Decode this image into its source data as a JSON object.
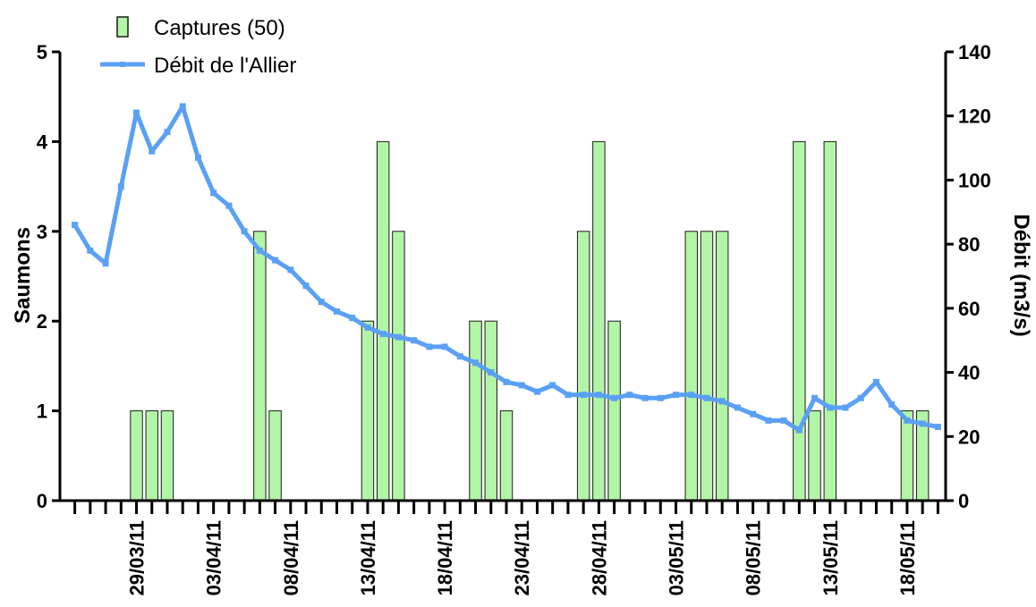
{
  "chart_data": {
    "type": "bar",
    "colors": {
      "bar_fill": "#b3f5a6",
      "bar_stroke": "#1a1a1a",
      "line": "#5aa0f5",
      "axis": "#000000"
    },
    "legend": {
      "placement": "top-left",
      "entries": [
        {
          "label": "Captures (50)",
          "kind": "bar"
        },
        {
          "label": "Débit de l'Allier",
          "kind": "line"
        }
      ]
    },
    "ylabel_left": "Saumons",
    "ylabel_right": "Débit (m3/s)",
    "ylim_left": [
      0,
      5
    ],
    "ylim_right": [
      0,
      140
    ],
    "yticks_left": [
      "0",
      "1",
      "2",
      "3",
      "4",
      "5"
    ],
    "yticks_right": [
      "0",
      "20",
      "40",
      "60",
      "80",
      "100",
      "120",
      "140"
    ],
    "x_tick_labels": [
      {
        "index": 4,
        "label": "29/03/11"
      },
      {
        "index": 9,
        "label": "03/04/11"
      },
      {
        "index": 14,
        "label": "08/04/11"
      },
      {
        "index": 19,
        "label": "13/04/11"
      },
      {
        "index": 24,
        "label": "18/04/11"
      },
      {
        "index": 29,
        "label": "23/04/11"
      },
      {
        "index": 34,
        "label": "28/04/11"
      },
      {
        "index": 39,
        "label": "03/05/11"
      },
      {
        "index": 44,
        "label": "08/05/11"
      },
      {
        "index": 49,
        "label": "13/05/11"
      },
      {
        "index": 54,
        "label": "18/05/11"
      }
    ],
    "day_count": 57,
    "series": [
      {
        "name": "Captures (50)",
        "kind": "bar",
        "values": [
          0,
          0,
          0,
          0,
          1,
          1,
          1,
          0,
          0,
          0,
          0,
          0,
          3,
          1,
          0,
          0,
          0,
          0,
          0,
          2,
          4,
          3,
          0,
          0,
          0,
          0,
          2,
          2,
          1,
          0,
          0,
          0,
          0,
          3,
          4,
          2,
          0,
          0,
          0,
          0,
          3,
          3,
          3,
          0,
          0,
          0,
          0,
          4,
          1,
          4,
          0,
          0,
          0,
          0,
          1,
          1,
          0
        ]
      },
      {
        "name": "Débit de l'Allier",
        "kind": "line",
        "values": [
          86,
          78,
          74,
          98,
          121,
          109,
          115,
          123,
          107,
          96,
          92,
          84,
          78,
          75,
          72,
          67,
          62,
          59,
          57,
          54,
          52,
          51,
          50,
          48,
          48,
          45,
          43,
          40,
          37,
          36,
          34,
          36,
          33,
          33,
          33,
          32,
          33,
          32,
          32,
          33,
          33,
          32,
          31,
          29,
          27,
          25,
          25,
          22,
          32,
          29,
          29,
          32,
          37,
          30,
          25,
          24,
          23
        ]
      }
    ]
  }
}
